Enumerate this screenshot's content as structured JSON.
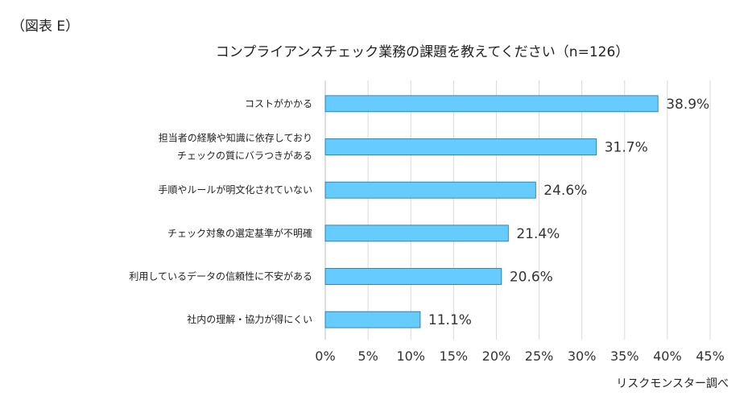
{
  "figure_label": "（図表 E）",
  "source_note": "リスクモンスター調べ",
  "chart_data": {
    "type": "bar",
    "orientation": "horizontal",
    "title": "コンプライアンスチェック業務の課題を教えてください（n=126）",
    "categories": [
      [
        "コストがかかる"
      ],
      [
        "担当者の経験や知識に依存しており",
        "チェックの質にバラつきがある"
      ],
      [
        "手順やルールが明文化されていない"
      ],
      [
        "チェック対象の選定基準が不明確"
      ],
      [
        "利用しているデータの信頼性に不安がある"
      ],
      [
        "社内の理解・協力が得にくい"
      ]
    ],
    "values": [
      38.9,
      31.7,
      24.6,
      21.4,
      20.6,
      11.1
    ],
    "value_labels": [
      "38.9%",
      "31.7%",
      "24.6%",
      "21.4%",
      "20.6%",
      "11.1%"
    ],
    "xlim": [
      0,
      45
    ],
    "xticks": [
      0,
      5,
      10,
      15,
      20,
      25,
      30,
      35,
      40,
      45
    ],
    "xtick_labels": [
      "0%",
      "5%",
      "10%",
      "15%",
      "20%",
      "25%",
      "30%",
      "35%",
      "40%",
      "45%"
    ],
    "grid": true,
    "colors": {
      "bar": "#66CCFF",
      "bar_stroke": "#1a6fa0",
      "grid": "#d9d9d9",
      "axis": "#bfbfbf"
    }
  }
}
